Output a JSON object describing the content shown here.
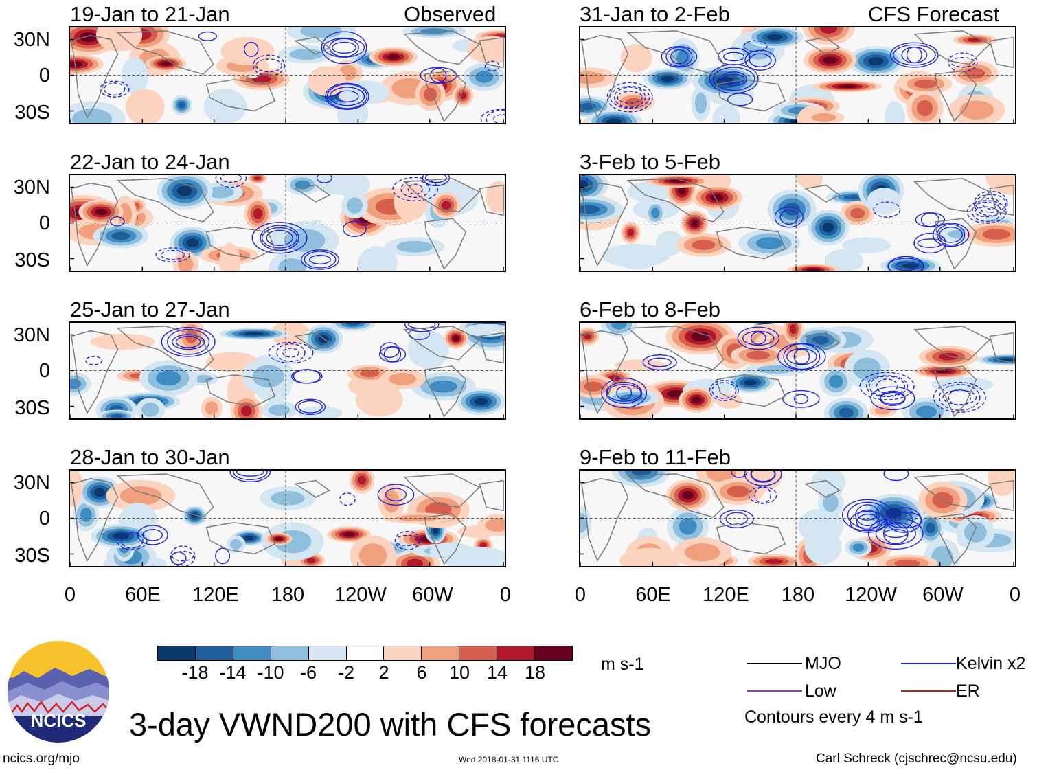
{
  "chart_data": {
    "type": "heatmap",
    "title": "3-day VWND200 with CFS forecasts",
    "variable": "VWND200",
    "units": "m s-1",
    "contour_note": "Contours every 4 m s-1",
    "y_ticks": [
      "30N",
      "0",
      "30S"
    ],
    "x_ticks": [
      "0",
      "60E",
      "120E",
      "180",
      "120W",
      "60W",
      "0"
    ],
    "columns": [
      {
        "label": "Observed",
        "panels": [
          "19-Jan to 21-Jan",
          "22-Jan to 24-Jan",
          "25-Jan to 27-Jan",
          "28-Jan to 30-Jan"
        ]
      },
      {
        "label": "CFS Forecast",
        "panels": [
          "31-Jan to 2-Feb",
          "3-Feb to 5-Feb",
          "6-Feb to 8-Feb",
          "9-Feb to 11-Feb"
        ]
      }
    ],
    "colorbar": {
      "labels": [
        "-18",
        "-14",
        "-10",
        "-6",
        "-2",
        "2",
        "6",
        "10",
        "14",
        "18"
      ],
      "colors": [
        "#0a3a6b",
        "#1f5fa0",
        "#3f8cc3",
        "#8fbfdd",
        "#d3e6f2",
        "#ffffff",
        "#fbd3bf",
        "#f0a07c",
        "#d6604d",
        "#b2182b",
        "#67001f"
      ]
    },
    "legend": [
      {
        "name": "MJO",
        "color": "#000000"
      },
      {
        "name": "Kelvin x2",
        "color": "#1d24d6"
      },
      {
        "name": "Low",
        "color": "#9b30e0"
      },
      {
        "name": "ER",
        "color": "#d41616"
      }
    ]
  },
  "branding": {
    "logo_text": "NCICS",
    "url": "ncics.org/mjo",
    "timestamp": "Wed 2018-01-31 1116 UTC",
    "credit": "Carl Schreck (cjschrec@ncsu.edu)"
  }
}
